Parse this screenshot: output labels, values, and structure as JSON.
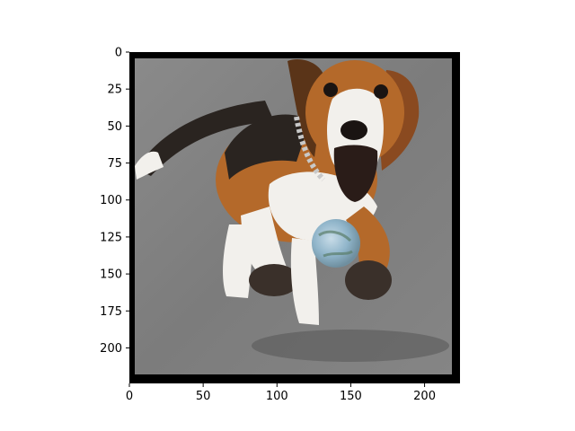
{
  "chart_data": {
    "type": "image",
    "title": "",
    "xlabel": "",
    "ylabel": "",
    "xlim": [
      0,
      224
    ],
    "ylim": [
      224,
      0
    ],
    "x_ticks": [
      0,
      50,
      100,
      150,
      200
    ],
    "y_ticks": [
      0,
      25,
      50,
      75,
      100,
      125,
      150,
      175,
      200
    ],
    "image": {
      "subject": "beagle-dog-running",
      "colors": {
        "frame": "#000000",
        "pavement": "#808080",
        "fur_brown": "#b4692a",
        "fur_white": "#f2f0ec",
        "fur_black": "#2a2420",
        "ball": "#8fb4c9"
      }
    }
  }
}
